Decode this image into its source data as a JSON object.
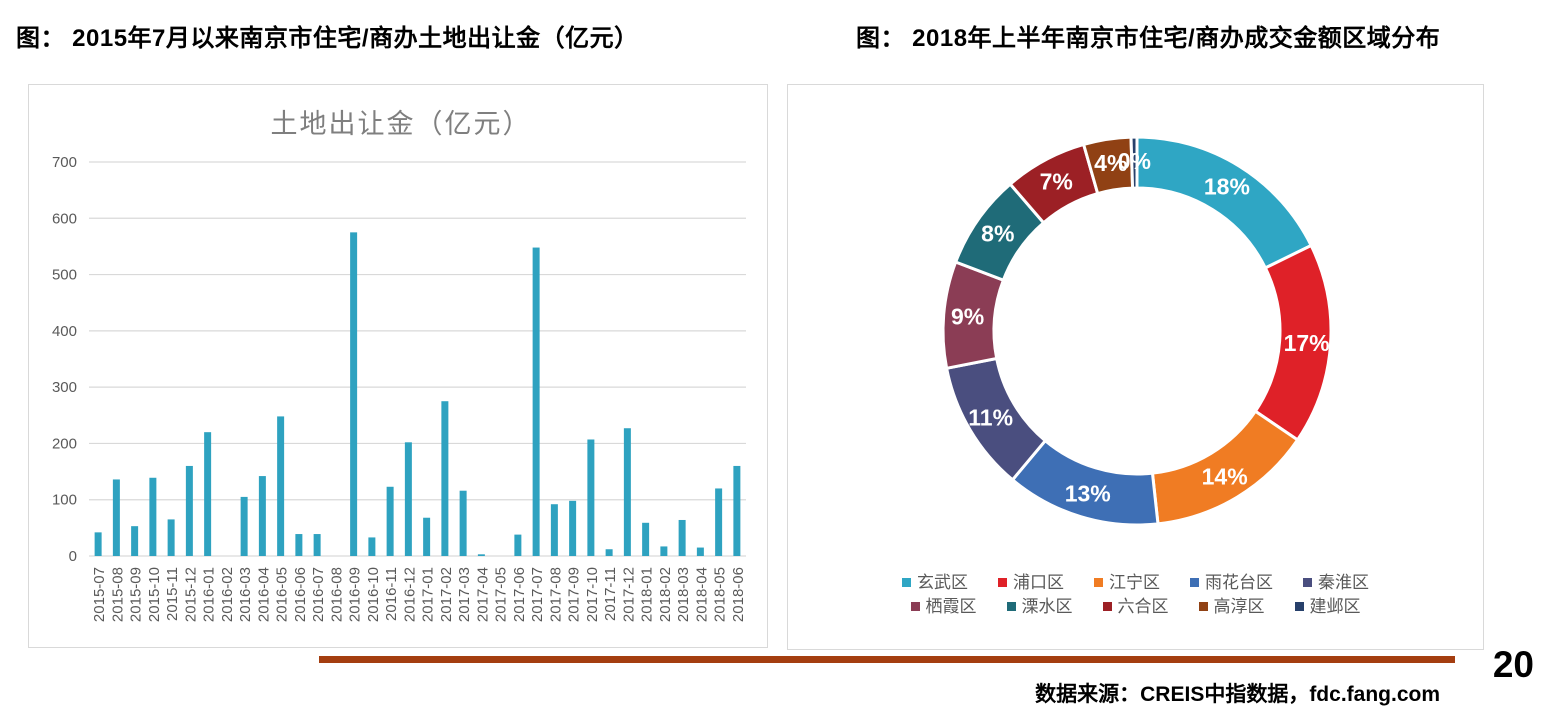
{
  "figure_titles": {
    "left": "图：  2015年7月以来南京市住宅/商办土地出让金（亿元）",
    "right": "图：  2018年上半年南京市住宅/商办成交金额区域分布"
  },
  "footer": {
    "page_number": "20",
    "source": "数据来源：CREIS中指数据，fdc.fang.com",
    "rule_color": "#A43E10"
  },
  "chart_data": [
    {
      "type": "bar",
      "title": "土地出让金（亿元）",
      "title_color": "#7F7F7F",
      "categories": [
        "2015-07",
        "2015-08",
        "2015-09",
        "2015-10",
        "2015-11",
        "2015-12",
        "2016-01",
        "2016-02",
        "2016-03",
        "2016-04",
        "2016-05",
        "2016-06",
        "2016-07",
        "2016-08",
        "2016-09",
        "2016-10",
        "2016-11",
        "2016-12",
        "2017-01",
        "2017-02",
        "2017-03",
        "2017-04",
        "2017-05",
        "2017-06",
        "2017-07",
        "2017-08",
        "2017-09",
        "2017-10",
        "2017-11",
        "2017-12",
        "2018-01",
        "2018-02",
        "2018-03",
        "2018-04",
        "2018-05",
        "2018-06"
      ],
      "values": [
        42,
        136,
        53,
        139,
        65,
        160,
        220,
        0,
        105,
        142,
        248,
        39,
        39,
        0,
        575,
        33,
        123,
        202,
        68,
        275,
        116,
        3,
        0,
        38,
        548,
        92,
        98,
        207,
        12,
        227,
        59,
        17,
        64,
        15,
        120,
        160
      ],
      "ylim": [
        0,
        700
      ],
      "yticks": [
        0,
        100,
        200,
        300,
        400,
        500,
        600,
        700
      ],
      "grid": true,
      "gridline_color": "#D9D9D9",
      "bar_color": "#2EA2C0",
      "tick_label_color": "#595959",
      "xlabel": "",
      "ylabel": ""
    },
    {
      "type": "pie",
      "donut": true,
      "start_angle": "top",
      "direction": "clockwise",
      "label_color": "#FFFFFF",
      "legend_position": "bottom",
      "legend_text_color": "#595959",
      "segments": [
        {
          "label": "玄武区",
          "value": 18,
          "text": "18%",
          "color": "#2FA6C4"
        },
        {
          "label": "浦口区",
          "value": 17,
          "text": "17%",
          "color": "#DF2128"
        },
        {
          "label": "江宁区",
          "value": 14,
          "text": "14%",
          "color": "#F07C23"
        },
        {
          "label": "雨花台区",
          "value": 13,
          "text": "13%",
          "color": "#3E6FB5"
        },
        {
          "label": "秦淮区",
          "value": 11,
          "text": "11%",
          "color": "#4A4E7F"
        },
        {
          "label": "栖霞区",
          "value": 9,
          "text": "9%",
          "color": "#8B3D55"
        },
        {
          "label": "溧水区",
          "value": 8,
          "text": "8%",
          "color": "#1F6B78"
        },
        {
          "label": "六合区",
          "value": 7,
          "text": "7%",
          "color": "#9C2025"
        },
        {
          "label": "高淳区",
          "value": 4,
          "text": "4%",
          "color": "#904114"
        },
        {
          "label": "建邺区",
          "value": 0,
          "text": "0%",
          "color": "#27406B"
        }
      ]
    }
  ]
}
